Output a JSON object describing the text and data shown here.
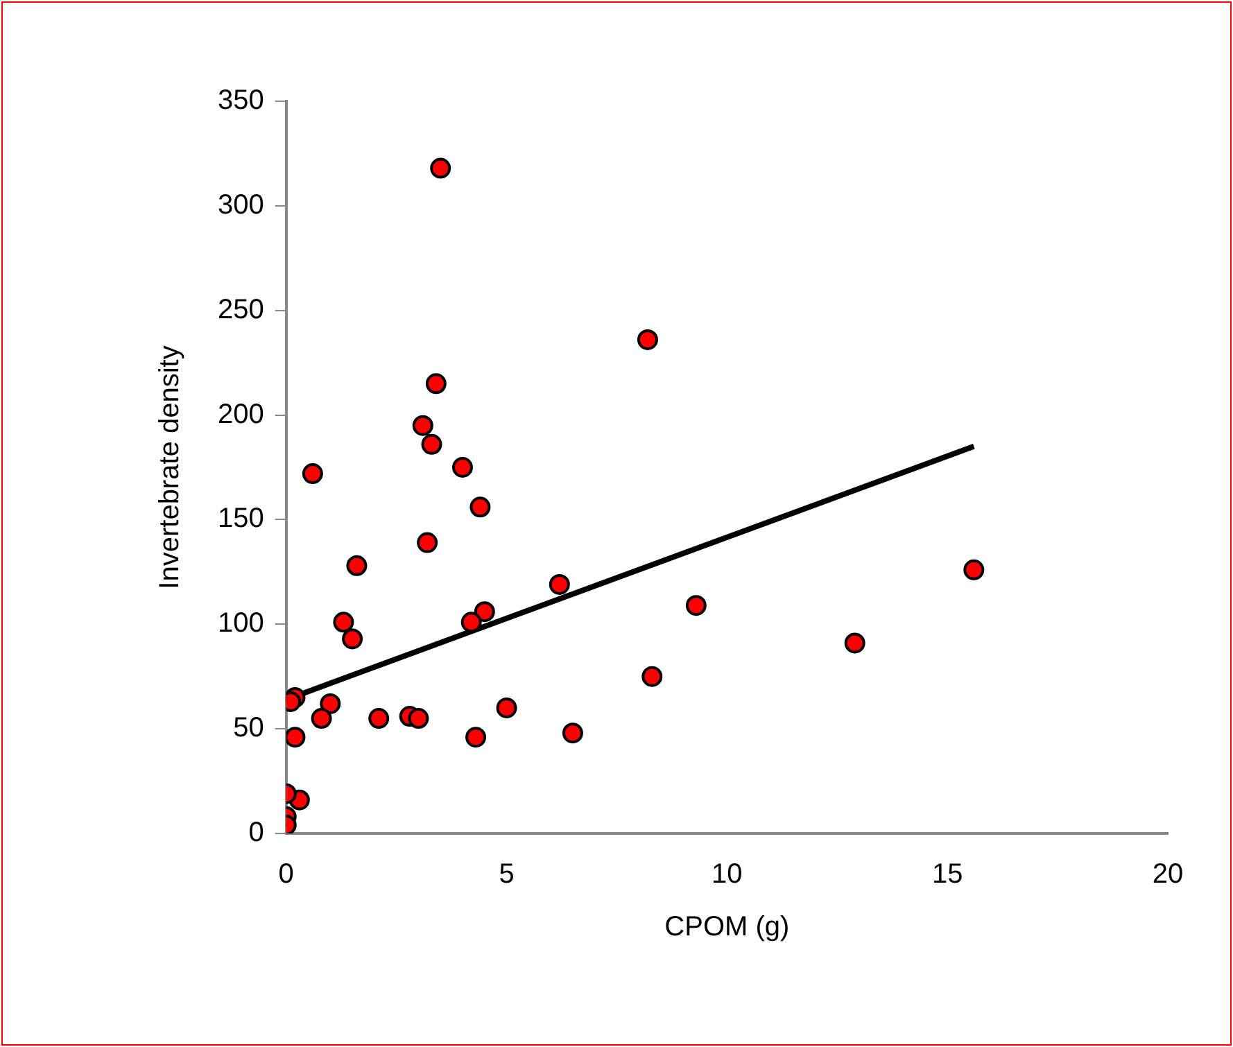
{
  "chart_data": {
    "type": "scatter",
    "xlabel": "CPOM (g)",
    "ylabel": "Invertebrate density",
    "xlim": [
      0,
      20
    ],
    "xticks": [
      0,
      5,
      10,
      15,
      20
    ],
    "ylim": [
      0,
      350
    ],
    "yticks": [
      0,
      50,
      100,
      150,
      200,
      250,
      300,
      350
    ],
    "grid": false,
    "legend": false,
    "marker": "circle",
    "series": [
      {
        "color": "#ff0000",
        "x": [
          3.5,
          8.2,
          3.4,
          3.1,
          3.3,
          4.0,
          0.6,
          4.4,
          3.2,
          1.6,
          1.3,
          1.5,
          4.5,
          4.2,
          6.2,
          9.3,
          12.9,
          15.6,
          8.3,
          6.5,
          5.0,
          4.3,
          2.8,
          3.0,
          2.1,
          1.0,
          0.8,
          0.2,
          0.2,
          0.1,
          0.3,
          0.0,
          0.0,
          0.0
        ],
        "values": [
          318,
          236,
          215,
          195,
          186,
          175,
          172,
          156,
          139,
          128,
          101,
          93,
          106,
          101,
          119,
          109,
          91,
          126,
          75,
          48,
          60,
          46,
          56,
          55,
          55,
          62,
          55,
          46,
          65,
          63,
          16,
          19,
          8,
          4
        ]
      },
      {
        "type": "line",
        "marker": "none",
        "color": "#000000",
        "x": [
          0,
          15.6
        ],
        "values": [
          64,
          185
        ]
      }
    ]
  }
}
